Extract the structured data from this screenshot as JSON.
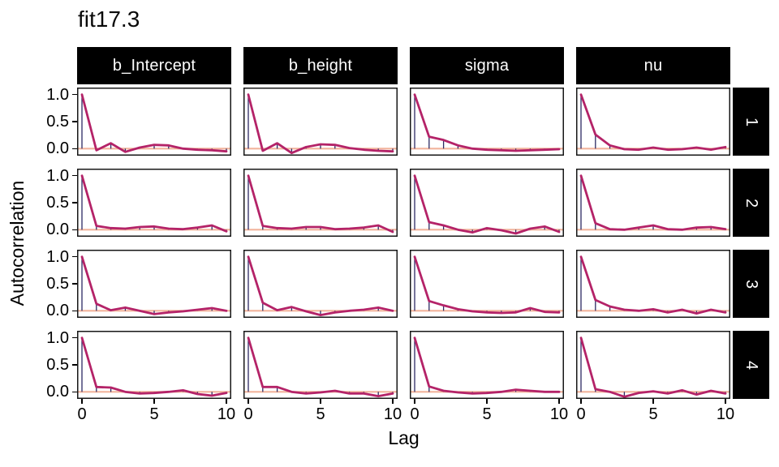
{
  "title": "fit17.3",
  "axes": {
    "y_label": "Autocorrelation",
    "x_label": "Lag",
    "y_ticks": [
      "1.0",
      "0.5",
      "0.0"
    ],
    "x_ticks": [
      "0",
      "5",
      "10"
    ]
  },
  "facets": {
    "columns": [
      "b_Intercept",
      "b_height",
      "sigma",
      "nu"
    ],
    "rows": [
      "1",
      "2",
      "3",
      "4"
    ]
  },
  "colors": {
    "acf_line": "#B42368",
    "lag_segment": "#2D2A63",
    "zero_line": "#F2B49C",
    "strip_bg": "#000000",
    "strip_text": "#FFFFFF",
    "panel_border": "#171717",
    "text": "#000000"
  },
  "chart_data": {
    "type": "line",
    "title": "fit17.3",
    "xlabel": "Lag",
    "ylabel": "Autocorrelation",
    "x": [
      0,
      1,
      2,
      3,
      4,
      5,
      6,
      7,
      8,
      9,
      10
    ],
    "x_ticks": [
      0,
      5,
      10
    ],
    "y_ticks": [
      1.0,
      0.5,
      0.0
    ],
    "ylim": [
      -0.13,
      1.13
    ],
    "grid": false,
    "legend": "none",
    "facet_columns": [
      "b_Intercept",
      "b_height",
      "sigma",
      "nu"
    ],
    "facet_rows": [
      "1",
      "2",
      "3",
      "4"
    ],
    "series": [
      {
        "parameter": "b_Intercept",
        "chain": 1,
        "values": [
          1.0,
          -0.03,
          0.1,
          -0.06,
          0.02,
          0.07,
          0.06,
          0.0,
          -0.02,
          -0.03,
          -0.05
        ]
      },
      {
        "parameter": "b_height",
        "chain": 1,
        "values": [
          1.0,
          -0.04,
          0.1,
          -0.08,
          0.03,
          0.08,
          0.07,
          0.01,
          -0.02,
          -0.04,
          -0.05
        ]
      },
      {
        "parameter": "sigma",
        "chain": 1,
        "values": [
          1.0,
          0.22,
          0.16,
          0.06,
          0.0,
          -0.02,
          -0.03,
          -0.04,
          -0.03,
          -0.02,
          -0.01
        ]
      },
      {
        "parameter": "nu",
        "chain": 1,
        "values": [
          1.0,
          0.26,
          0.06,
          -0.01,
          -0.02,
          0.02,
          -0.02,
          -0.01,
          0.02,
          -0.02,
          0.03
        ]
      },
      {
        "parameter": "b_Intercept",
        "chain": 2,
        "values": [
          1.0,
          0.07,
          0.03,
          0.02,
          0.05,
          0.06,
          0.02,
          0.01,
          0.04,
          0.08,
          -0.03
        ]
      },
      {
        "parameter": "b_height",
        "chain": 2,
        "values": [
          1.0,
          0.07,
          0.03,
          0.02,
          0.05,
          0.05,
          0.01,
          0.02,
          0.04,
          0.08,
          -0.04
        ]
      },
      {
        "parameter": "sigma",
        "chain": 2,
        "values": [
          1.0,
          0.14,
          0.08,
          0.0,
          -0.05,
          0.03,
          -0.01,
          -0.07,
          0.02,
          0.06,
          -0.04
        ]
      },
      {
        "parameter": "nu",
        "chain": 2,
        "values": [
          1.0,
          0.12,
          0.01,
          0.0,
          0.04,
          0.08,
          0.01,
          0.0,
          0.04,
          0.05,
          0.01
        ]
      },
      {
        "parameter": "b_Intercept",
        "chain": 3,
        "values": [
          1.0,
          0.13,
          0.01,
          0.06,
          0.0,
          -0.06,
          -0.03,
          -0.01,
          0.02,
          0.05,
          0.0
        ]
      },
      {
        "parameter": "b_height",
        "chain": 3,
        "values": [
          1.0,
          0.15,
          0.01,
          0.07,
          -0.01,
          -0.08,
          -0.03,
          0.0,
          0.02,
          0.06,
          0.0
        ]
      },
      {
        "parameter": "sigma",
        "chain": 3,
        "values": [
          1.0,
          0.18,
          0.1,
          0.03,
          -0.01,
          -0.03,
          -0.04,
          -0.03,
          0.05,
          -0.02,
          -0.03
        ]
      },
      {
        "parameter": "nu",
        "chain": 3,
        "values": [
          1.0,
          0.2,
          0.08,
          0.02,
          0.0,
          0.03,
          -0.03,
          0.02,
          -0.05,
          0.02,
          -0.03
        ]
      },
      {
        "parameter": "b_Intercept",
        "chain": 4,
        "values": [
          1.0,
          0.09,
          0.08,
          0.0,
          -0.03,
          -0.02,
          0.0,
          0.03,
          -0.04,
          -0.07,
          -0.02
        ]
      },
      {
        "parameter": "b_height",
        "chain": 4,
        "values": [
          1.0,
          0.09,
          0.09,
          0.0,
          -0.03,
          -0.01,
          0.02,
          -0.03,
          -0.03,
          -0.08,
          -0.03
        ]
      },
      {
        "parameter": "sigma",
        "chain": 4,
        "values": [
          1.0,
          0.1,
          0.02,
          -0.01,
          -0.03,
          -0.02,
          0.0,
          0.04,
          0.02,
          0.0,
          0.0
        ]
      },
      {
        "parameter": "nu",
        "chain": 4,
        "values": [
          1.0,
          0.05,
          0.0,
          -0.09,
          -0.02,
          0.01,
          -0.03,
          0.03,
          -0.05,
          0.02,
          -0.03
        ]
      }
    ]
  }
}
